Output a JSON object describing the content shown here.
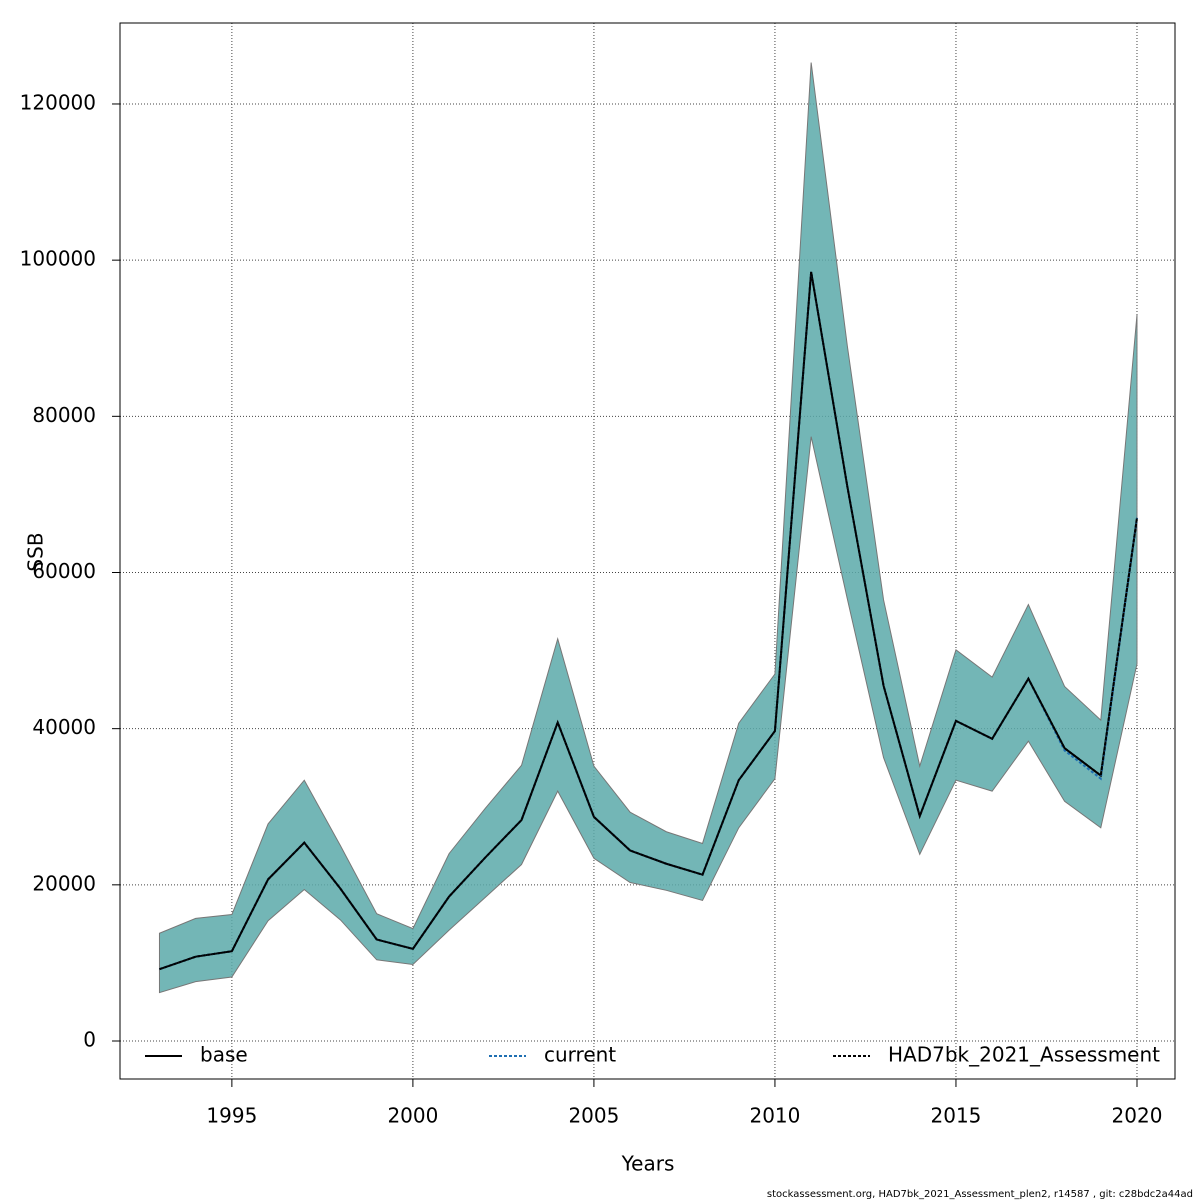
{
  "chart_data": {
    "type": "line",
    "xlabel": "Years",
    "ylabel": "SSB",
    "footer": "stockassessment.org, HAD7bk_2021_Assessment_plen2, r14587 , git: c28bdc2a44ad",
    "x": [
      1993,
      1994,
      1995,
      1996,
      1997,
      1998,
      1999,
      2000,
      2001,
      2002,
      2003,
      2004,
      2005,
      2006,
      2007,
      2008,
      2009,
      2010,
      2011,
      2012,
      2013,
      2014,
      2015,
      2016,
      2017,
      2018,
      2019,
      2020
    ],
    "series": [
      {
        "name": "base",
        "color": "#000000",
        "style": "solid",
        "values": [
          9200,
          10800,
          11500,
          20700,
          25400,
          19500,
          13000,
          11800,
          18500,
          23500,
          28300,
          40800,
          28700,
          24400,
          22700,
          21300,
          33400,
          39700,
          98500,
          71000,
          45500,
          28800,
          41000,
          38700,
          46400,
          37500,
          34000,
          67000
        ]
      },
      {
        "name": "current",
        "color": "#1f6fb2",
        "style": "dotted",
        "values": [
          9200,
          10800,
          11500,
          20700,
          25400,
          19500,
          13000,
          11800,
          18500,
          23500,
          28300,
          40800,
          28700,
          24400,
          22700,
          21300,
          33400,
          39700,
          98500,
          71000,
          45500,
          28800,
          41000,
          38700,
          46400,
          37200,
          33600,
          67000
        ]
      },
      {
        "name": "HAD7bk_2021_Assessment",
        "color": "#000000",
        "style": "dotted",
        "band_color": "#5aa9a9",
        "values": [
          9200,
          10800,
          11500,
          20700,
          25400,
          19500,
          13000,
          11800,
          18500,
          23500,
          28300,
          40800,
          28700,
          24400,
          22700,
          21300,
          33400,
          39700,
          98500,
          71000,
          45500,
          28800,
          41000,
          38700,
          46400,
          37500,
          34000,
          67000
        ],
        "lower": [
          6200,
          7600,
          8200,
          15400,
          19400,
          15500,
          10400,
          9800,
          14200,
          18400,
          22600,
          32000,
          23400,
          20300,
          19300,
          18000,
          27300,
          33600,
          77400,
          56600,
          36300,
          23900,
          33400,
          32000,
          38400,
          30700,
          27300,
          48300
        ],
        "upper": [
          13800,
          15700,
          16200,
          27800,
          33400,
          25000,
          16300,
          14400,
          24000,
          29800,
          35300,
          51500,
          35200,
          29300,
          26800,
          25300,
          40700,
          47000,
          125300,
          89000,
          56500,
          35200,
          50100,
          46600,
          55900,
          45400,
          41100,
          93000
        ]
      }
    ],
    "xlim": [
      1991.91,
      2021.05
    ],
    "xticks": [
      1995,
      2000,
      2005,
      2010,
      2015,
      2020
    ],
    "ylim": [
      -4866,
      130370
    ],
    "yticks": [
      0,
      20000,
      40000,
      60000,
      80000,
      100000,
      120000
    ],
    "grid": true,
    "legend": "bottom"
  }
}
